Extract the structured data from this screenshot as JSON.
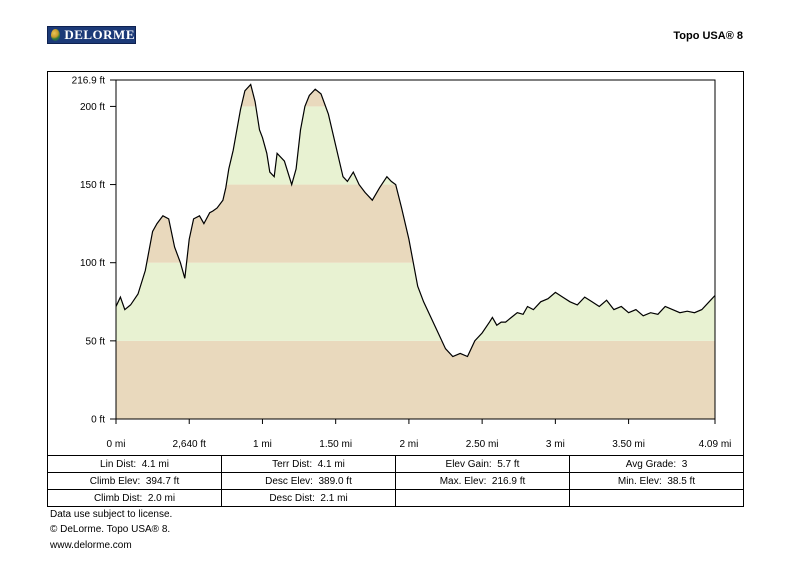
{
  "header": {
    "logo_text": "DELORME",
    "product": "Topo USA® 8"
  },
  "colors": {
    "band_tan": "#e9d9bd",
    "band_green": "#e8f2d2",
    "profile_line": "#000000"
  },
  "chart_data": {
    "type": "area",
    "title": "",
    "xlabel": "",
    "ylabel": "",
    "xlim": [
      0,
      4.09
    ],
    "ylim": [
      0,
      216.9
    ],
    "x_ticks": [
      {
        "value": 0,
        "label": "0 mi"
      },
      {
        "value": 0.5,
        "label": "2,640 ft"
      },
      {
        "value": 1.0,
        "label": "1 mi"
      },
      {
        "value": 1.5,
        "label": "1.50 mi"
      },
      {
        "value": 2.0,
        "label": "2 mi"
      },
      {
        "value": 2.5,
        "label": "2.50 mi"
      },
      {
        "value": 3.0,
        "label": "3 mi"
      },
      {
        "value": 3.5,
        "label": "3.50 mi"
      },
      {
        "value": 4.09,
        "label": "4.09 mi"
      }
    ],
    "y_ticks": [
      {
        "value": 0,
        "label": "0 ft"
      },
      {
        "value": 50,
        "label": "50 ft"
      },
      {
        "value": 100,
        "label": "100 ft"
      },
      {
        "value": 150,
        "label": "150 ft"
      },
      {
        "value": 200,
        "label": "200 ft"
      },
      {
        "value": 216.9,
        "label": "216.9 ft"
      }
    ],
    "bands": [
      0,
      50,
      100,
      150,
      200
    ],
    "series": [
      {
        "x": [
          0,
          0.03,
          0.06,
          0.1,
          0.15,
          0.2,
          0.25,
          0.28,
          0.32,
          0.36,
          0.4,
          0.44,
          0.47,
          0.5,
          0.53,
          0.57,
          0.6,
          0.64,
          0.66,
          0.69,
          0.73,
          0.75,
          0.77,
          0.8,
          0.85,
          0.88,
          0.92,
          0.95,
          0.98,
          1.0,
          1.03,
          1.05,
          1.08,
          1.1,
          1.15,
          1.2,
          1.23,
          1.26,
          1.29,
          1.32,
          1.36,
          1.4,
          1.45,
          1.5,
          1.55,
          1.58,
          1.62,
          1.66,
          1.7,
          1.75,
          1.8,
          1.85,
          1.88,
          1.91,
          1.95,
          2.0,
          2.03,
          2.06,
          2.1,
          2.15,
          2.2,
          2.25,
          2.3,
          2.35,
          2.4,
          2.45,
          2.5,
          2.55,
          2.57,
          2.6,
          2.63,
          2.66,
          2.7,
          2.74,
          2.78,
          2.81,
          2.85,
          2.9,
          2.95,
          3.0,
          3.05,
          3.1,
          3.15,
          3.2,
          3.25,
          3.3,
          3.35,
          3.4,
          3.45,
          3.5,
          3.55,
          3.6,
          3.65,
          3.7,
          3.75,
          3.8,
          3.85,
          3.9,
          3.95,
          4.0,
          4.05,
          4.09
        ],
        "y": [
          72,
          78,
          70,
          73,
          80,
          95,
          120,
          125,
          130,
          128,
          110,
          100,
          90,
          115,
          128,
          130,
          125,
          132,
          133,
          135,
          140,
          148,
          160,
          172,
          198,
          210,
          214,
          203,
          185,
          180,
          170,
          158,
          155,
          170,
          165,
          150,
          160,
          185,
          200,
          207,
          211,
          208,
          195,
          175,
          155,
          152,
          158,
          150,
          145,
          140,
          148,
          155,
          152,
          150,
          135,
          115,
          100,
          85,
          75,
          65,
          55,
          45,
          40,
          42,
          40,
          50,
          55,
          62,
          65,
          60,
          62,
          62,
          65,
          68,
          67,
          72,
          70,
          75,
          77,
          81,
          78,
          75,
          73,
          78,
          75,
          72,
          76,
          70,
          72,
          68,
          70,
          66,
          68,
          67,
          72,
          70,
          68,
          69,
          68,
          70,
          75,
          79
        ]
      }
    ]
  },
  "stats": [
    [
      {
        "label": "Lin Dist:",
        "value": "4.1 mi"
      },
      {
        "label": "Terr Dist:",
        "value": "4.1 mi"
      },
      {
        "label": "Elev Gain:",
        "value": "5.7 ft"
      },
      {
        "label": "Avg Grade:",
        "value": "3"
      }
    ],
    [
      {
        "label": "Climb Elev:",
        "value": "394.7 ft"
      },
      {
        "label": "Desc Elev:",
        "value": "389.0 ft"
      },
      {
        "label": "Max. Elev:",
        "value": "216.9 ft"
      },
      {
        "label": "Min. Elev:",
        "value": "38.5 ft"
      }
    ],
    [
      {
        "label": "Climb Dist:",
        "value": "2.0 mi"
      },
      {
        "label": "Desc Dist:",
        "value": "2.1 mi"
      },
      {
        "label": "",
        "value": ""
      },
      {
        "label": "",
        "value": ""
      }
    ]
  ],
  "footer": {
    "line1": "Data use subject to license.",
    "line2": "© DeLorme. Topo USA® 8.",
    "line3": "www.delorme.com"
  }
}
